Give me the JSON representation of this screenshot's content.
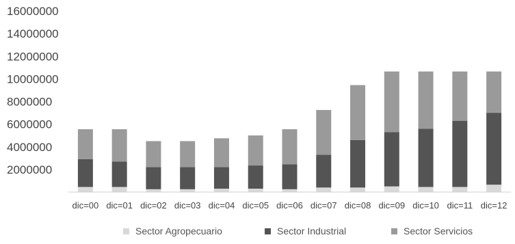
{
  "chart_data": {
    "type": "bar",
    "stacked": true,
    "categories": [
      "dic=00",
      "dic=01",
      "dic=02",
      "dic=03",
      "dic=04",
      "dic=05",
      "dic=06",
      "dic=07",
      "dic=08",
      "dic=09",
      "dic=10",
      "dic=11",
      "dic=12"
    ],
    "series": [
      {
        "name": "Sector Agropecuario",
        "color": "#d9d9d9",
        "values": [
          450000,
          450000,
          250000,
          250000,
          300000,
          300000,
          250000,
          400000,
          400000,
          500000,
          450000,
          450000,
          650000
        ]
      },
      {
        "name": "Sector Industrial",
        "color": "#545454",
        "values": [
          2450000,
          2250000,
          1950000,
          1950000,
          1900000,
          2050000,
          2200000,
          2900000,
          4200000,
          4800000,
          5150000,
          5850000,
          6350000
        ]
      },
      {
        "name": "Sector Servicios",
        "color": "#9a9a9a",
        "values": [
          2650000,
          2850000,
          2300000,
          2300000,
          2550000,
          2650000,
          3100000,
          3950000,
          4850000,
          5350000,
          5050000,
          4350000,
          3650000
        ]
      }
    ],
    "yticks": [
      "16000000",
      "14000000",
      "12000000",
      "10000000",
      "8000000",
      "6000000",
      "4000000",
      "2000000"
    ],
    "ylim": [
      0,
      16000000
    ],
    "grid": false,
    "legend_position": "bottom"
  }
}
